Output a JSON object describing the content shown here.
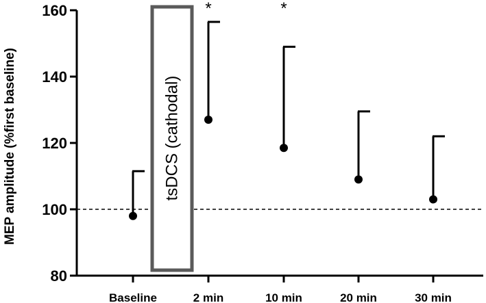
{
  "chart_data": {
    "type": "scatter",
    "ylabel": "MEP amplitude  (%first baseline)",
    "ylim": [
      80,
      160
    ],
    "yticks": [
      80,
      100,
      120,
      140,
      160
    ],
    "categories": [
      "Baseline",
      "2 min",
      "10 min",
      "20 min",
      "30 min"
    ],
    "series": [
      {
        "values": [
          98,
          127,
          118.5,
          109,
          103
        ],
        "error_upper": [
          111.5,
          156.5,
          149,
          129.5,
          122
        ],
        "significance": [
          "",
          "*",
          "*",
          "",
          ""
        ]
      }
    ],
    "reference_line": 100,
    "annotation": {
      "text": "tsDCS (cathodal)"
    },
    "grid": false
  }
}
